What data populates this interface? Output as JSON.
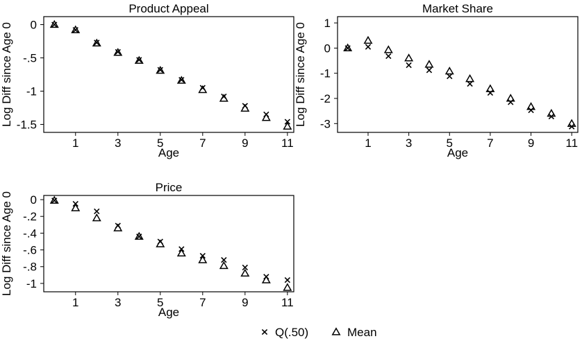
{
  "chart_data": [
    {
      "type": "scatter",
      "title": "Product Appeal",
      "xlabel": "Age",
      "ylabel": "Log Diff since Age 0",
      "xlim": [
        -0.5,
        11.3
      ],
      "ylim": [
        -1.62,
        0.12
      ],
      "xticks": [
        "1",
        "3",
        "5",
        "7",
        "9",
        "11"
      ],
      "yticks": [
        "0",
        "-.5",
        "-1",
        "-1.5"
      ],
      "x": [
        0,
        1,
        2,
        3,
        4,
        5,
        6,
        7,
        8,
        9,
        10,
        11
      ],
      "series": [
        {
          "name": "Q(.50)",
          "marker": "x",
          "values": [
            0,
            -0.08,
            -0.27,
            -0.41,
            -0.53,
            -0.68,
            -0.83,
            -0.95,
            -1.08,
            -1.22,
            -1.35,
            -1.46
          ]
        },
        {
          "name": "Mean",
          "marker": "triangle",
          "values": [
            0,
            -0.08,
            -0.28,
            -0.42,
            -0.54,
            -0.69,
            -0.84,
            -0.98,
            -1.11,
            -1.26,
            -1.4,
            -1.53
          ]
        }
      ]
    },
    {
      "type": "scatter",
      "title": "Market Share",
      "xlabel": "Age",
      "ylabel": "Log Diff since Age 0",
      "xlim": [
        -0.5,
        11.3
      ],
      "ylim": [
        -3.35,
        1.25
      ],
      "xticks": [
        "1",
        "3",
        "5",
        "7",
        "9",
        "11"
      ],
      "yticks": [
        "1",
        "0",
        "-1",
        "-2",
        "-3"
      ],
      "x": [
        0,
        1,
        2,
        3,
        4,
        5,
        6,
        7,
        8,
        9,
        10,
        11
      ],
      "series": [
        {
          "name": "Q(.50)",
          "marker": "x",
          "values": [
            0,
            0.05,
            -0.32,
            -0.68,
            -0.88,
            -1.12,
            -1.42,
            -1.78,
            -2.15,
            -2.47,
            -2.72,
            -3.12
          ]
        },
        {
          "name": "Mean",
          "marker": "triangle",
          "values": [
            0,
            0.3,
            -0.07,
            -0.4,
            -0.65,
            -0.92,
            -1.22,
            -1.62,
            -2,
            -2.33,
            -2.6,
            -3
          ]
        }
      ]
    },
    {
      "type": "scatter",
      "title": "Price",
      "xlabel": "Age",
      "ylabel": "Log Diff since Age 0",
      "xlim": [
        -0.5,
        11.3
      ],
      "ylim": [
        -1.1,
        0.05
      ],
      "xticks": [
        "1",
        "3",
        "5",
        "7",
        "9",
        "11"
      ],
      "yticks": [
        "0",
        "-.2",
        "-.4",
        "-.6",
        "-.8",
        "-1"
      ],
      "x": [
        0,
        1,
        2,
        3,
        4,
        5,
        6,
        7,
        8,
        9,
        10,
        11
      ],
      "series": [
        {
          "name": "Q(.50)",
          "marker": "x",
          "values": [
            -0.01,
            -0.05,
            -0.14,
            -0.31,
            -0.44,
            -0.5,
            -0.59,
            -0.67,
            -0.72,
            -0.81,
            -0.92,
            -0.96
          ]
        },
        {
          "name": "Mean",
          "marker": "triangle",
          "values": [
            -0.01,
            -0.1,
            -0.22,
            -0.34,
            -0.44,
            -0.53,
            -0.64,
            -0.72,
            -0.79,
            -0.88,
            -0.96,
            -1.05
          ]
        }
      ]
    }
  ],
  "legend": {
    "position": "bottom-center",
    "items": [
      {
        "label": "Q(.50)",
        "marker": "x"
      },
      {
        "label": "Mean",
        "marker": "triangle"
      }
    ]
  }
}
